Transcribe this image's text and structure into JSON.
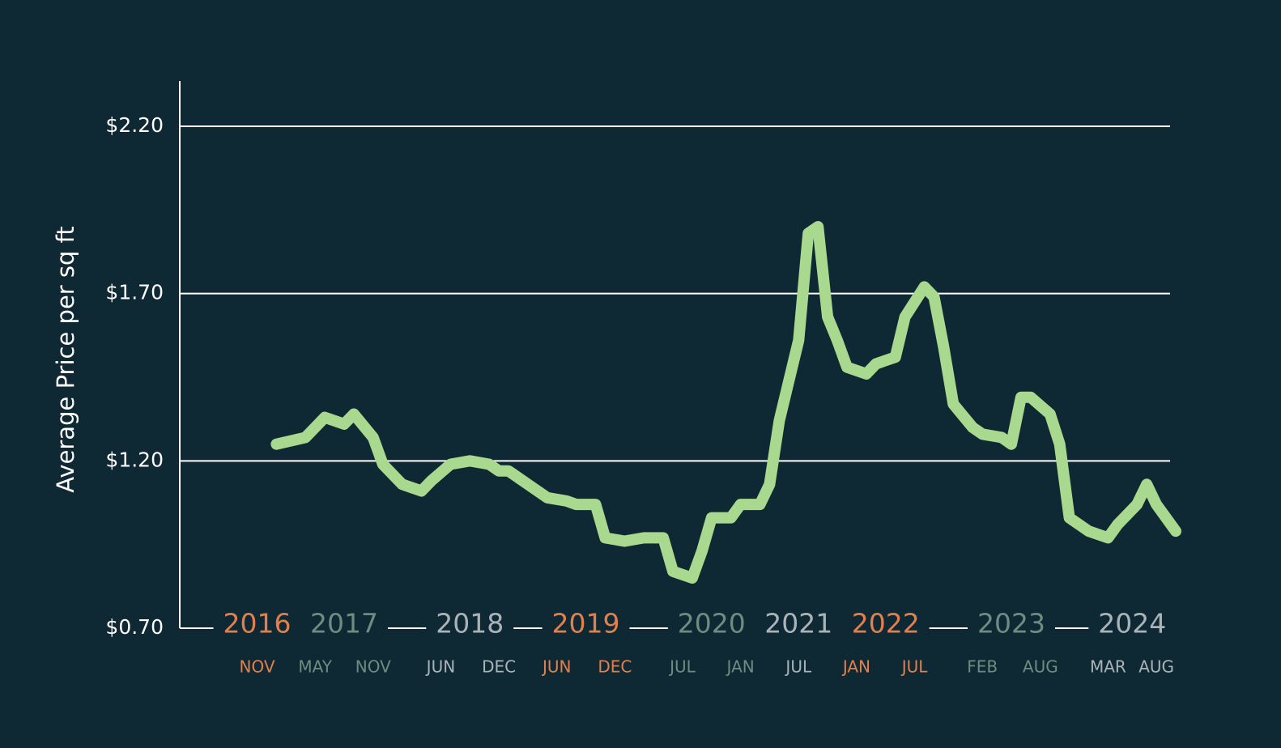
{
  "chart_data": {
    "type": "line",
    "y_label": "Average Price per sq ft",
    "ylim": [
      0.7,
      2.35
    ],
    "yticks": [
      {
        "value": 0.7,
        "label": "$0.70"
      },
      {
        "value": 1.2,
        "label": "$1.20"
      },
      {
        "value": 1.7,
        "label": "$1.70"
      },
      {
        "value": 2.2,
        "label": "$2.20"
      }
    ],
    "grid": true,
    "xlim": [
      "2016-03",
      "2024-10"
    ],
    "x_groups": [
      {
        "year": "2016",
        "months": [
          {
            "value": "2016-11",
            "label": "NOV"
          }
        ]
      },
      {
        "year": "2017",
        "months": [
          {
            "value": "2017-05",
            "label": "MAY"
          },
          {
            "value": "2017-11",
            "label": "NOV"
          }
        ]
      },
      {
        "year": "2018",
        "months": [
          {
            "value": "2018-06",
            "label": "JUN"
          },
          {
            "value": "2018-12",
            "label": "DEC"
          }
        ]
      },
      {
        "year": "2019",
        "months": [
          {
            "value": "2019-06",
            "label": "JUN"
          },
          {
            "value": "2019-12",
            "label": "DEC"
          }
        ]
      },
      {
        "year": "2020",
        "months": [
          {
            "value": "2020-07",
            "label": "JUL"
          },
          {
            "value": "2021-01",
            "label": "JAN"
          }
        ]
      },
      {
        "year": "2021",
        "months": [
          {
            "value": "2021-07",
            "label": "JUL"
          }
        ]
      },
      {
        "year": "2022",
        "months": [
          {
            "value": "2022-01",
            "label": "JAN"
          },
          {
            "value": "2022-07",
            "label": "JUL"
          }
        ]
      },
      {
        "year": "2023",
        "months": [
          {
            "value": "2023-02",
            "label": "FEB"
          },
          {
            "value": "2023-08",
            "label": "AUG"
          }
        ]
      },
      {
        "year": "2024",
        "months": [
          {
            "value": "2024-03",
            "label": "MAR"
          },
          {
            "value": "2024-08",
            "label": "AUG"
          }
        ]
      }
    ],
    "group_colors": [
      "#e2804d",
      "#6f8c80",
      "#aab4b8"
    ],
    "x": [
      "2017-01",
      "2017-04",
      "2017-06",
      "2017-08",
      "2017-09",
      "2017-11",
      "2017-12",
      "2018-02",
      "2018-04",
      "2018-05",
      "2018-07",
      "2018-09",
      "2018-11",
      "2018-12",
      "2019-01",
      "2019-03",
      "2019-05",
      "2019-07",
      "2019-08",
      "2019-10",
      "2019-11",
      "2020-01",
      "2020-03",
      "2020-05",
      "2020-06",
      "2020-08",
      "2020-09",
      "2020-10",
      "2020-12",
      "2021-01",
      "2021-03",
      "2021-04",
      "2021-05",
      "2021-06",
      "2021-07",
      "2021-08",
      "2021-09",
      "2021-10",
      "2021-11",
      "2021-12",
      "2022-02",
      "2022-03",
      "2022-04",
      "2022-05",
      "2022-06",
      "2022-08",
      "2022-09",
      "2022-10",
      "2022-11",
      "2023-01",
      "2023-02",
      "2023-04",
      "2023-05",
      "2023-06",
      "2023-07",
      "2023-09",
      "2023-10",
      "2023-11",
      "2024-01",
      "2024-03",
      "2024-04",
      "2024-06",
      "2024-07",
      "2024-08",
      "2024-10"
    ],
    "series": [
      {
        "color": "#a9d98f",
        "values": [
          1.25,
          1.27,
          1.33,
          1.31,
          1.34,
          1.27,
          1.19,
          1.13,
          1.11,
          1.14,
          1.19,
          1.2,
          1.19,
          1.17,
          1.17,
          1.13,
          1.09,
          1.08,
          1.07,
          1.07,
          0.97,
          0.96,
          0.97,
          0.97,
          0.87,
          0.85,
          0.93,
          1.03,
          1.03,
          1.07,
          1.07,
          1.13,
          1.32,
          1.44,
          1.56,
          1.88,
          1.9,
          1.63,
          1.56,
          1.48,
          1.46,
          1.49,
          1.5,
          1.51,
          1.63,
          1.72,
          1.69,
          1.54,
          1.37,
          1.3,
          1.28,
          1.27,
          1.25,
          1.39,
          1.39,
          1.34,
          1.25,
          1.03,
          0.99,
          0.97,
          1.01,
          1.07,
          1.13,
          1.07,
          0.99
        ]
      }
    ]
  }
}
